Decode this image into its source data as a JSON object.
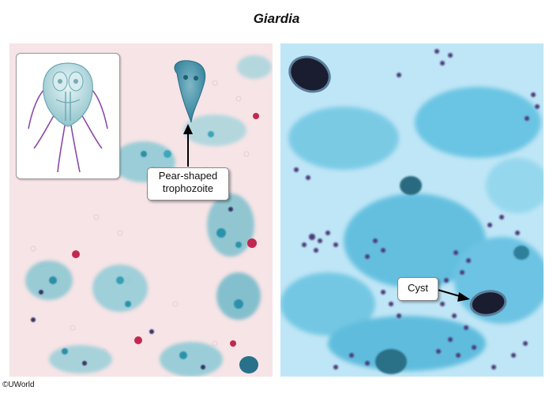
{
  "figure": {
    "title": "Giardia",
    "copyright": "©UWorld"
  },
  "left_panel": {
    "stain_background": "#f6e4e6",
    "callout": {
      "line1": "Pear-shaped",
      "line2": "trophozoite"
    },
    "inset_icon": "giardia-trophozoite-diagram"
  },
  "right_panel": {
    "stain_background": "#bfe6f6",
    "callout": {
      "label": "Cyst"
    }
  },
  "colors": {
    "cyst_dark": "#1a1d30",
    "stain_blue": "#3fb3c9",
    "stain_purple": "#4b3a78",
    "stain_red": "#c2284f",
    "diagram_purple": "#8b4aa8"
  }
}
